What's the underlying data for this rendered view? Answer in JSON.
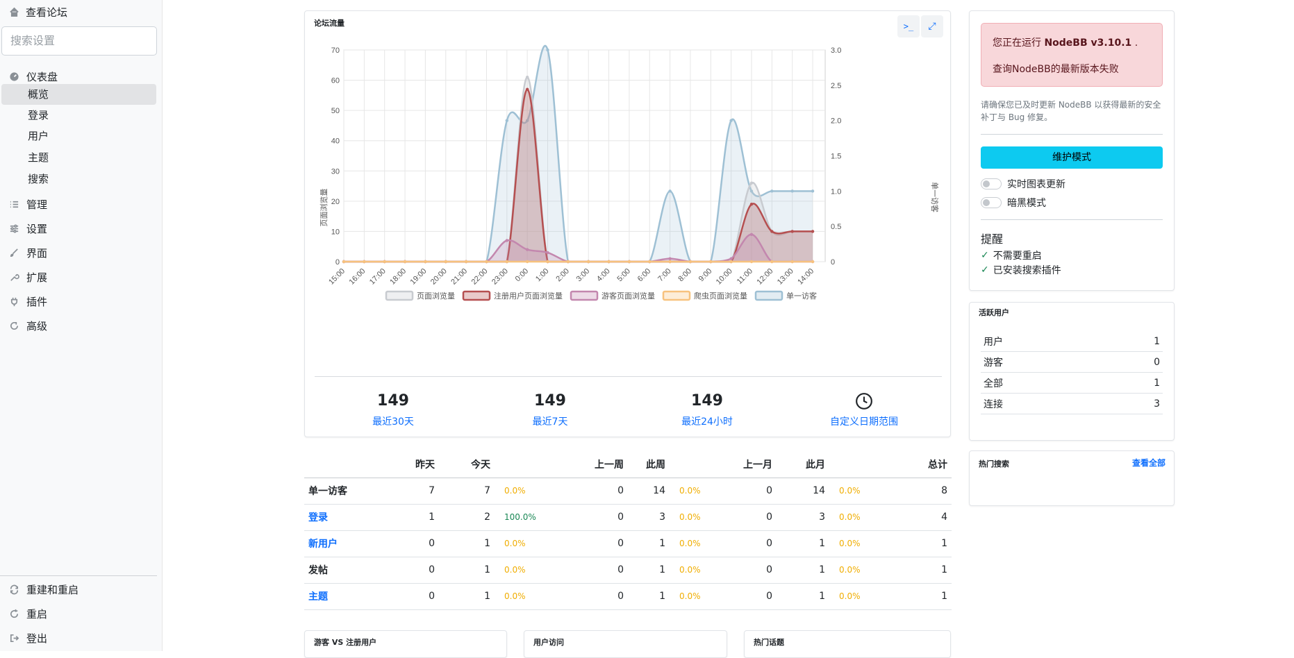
{
  "sidebar": {
    "view_forum": "查看论坛",
    "search_placeholder": "搜索设置",
    "dashboard": "仪表盘",
    "dashboard_items": [
      "概览",
      "登录",
      "用户",
      "主题",
      "搜索"
    ],
    "manage": "管理",
    "settings": "设置",
    "appearance": "界面",
    "extend": "扩展",
    "plugins": "插件",
    "advanced": "高级",
    "rebuild_restart": "重建和重启",
    "restart": "重启",
    "logout": "登出"
  },
  "traffic": {
    "title": "论坛流量",
    "stats": [
      {
        "value": "149",
        "label": "最近30天"
      },
      {
        "value": "149",
        "label": "最近7天"
      },
      {
        "value": "149",
        "label": "最近24小时"
      },
      {
        "value": "",
        "label": "自定义日期范围"
      }
    ]
  },
  "chart_data": {
    "type": "area",
    "title": "",
    "ylabel": "页面浏览量",
    "y2label": "单一访客",
    "ylim": [
      0,
      70
    ],
    "y2lim": [
      0,
      3.0
    ],
    "yticks": [
      "0",
      "10",
      "20",
      "30",
      "40",
      "50",
      "60",
      "70"
    ],
    "y2ticks": [
      "0",
      "0.5",
      "1.0",
      "1.5",
      "2.0",
      "2.5",
      "3.0"
    ],
    "x": [
      "15:00",
      "16:00",
      "17:00",
      "18:00",
      "19:00",
      "20:00",
      "21:00",
      "22:00",
      "23:00",
      "0:00",
      "1:00",
      "2:00",
      "3:00",
      "4:00",
      "5:00",
      "6:00",
      "7:00",
      "8:00",
      "9:00",
      "10:00",
      "11:00",
      "12:00",
      "13:00",
      "14:00"
    ],
    "legend_position": "bottom",
    "grid": true,
    "series": [
      {
        "name": "页面浏览量",
        "axis": "left",
        "color": "#c8cbd0",
        "values": [
          0,
          0,
          0,
          0,
          0,
          0,
          0,
          0,
          0,
          61,
          0,
          0,
          0,
          0,
          0,
          0,
          0,
          0,
          0,
          0,
          26,
          10,
          10,
          10
        ]
      },
      {
        "name": "注册用户页面浏览量",
        "axis": "left",
        "color": "#b54f50",
        "values": [
          0,
          0,
          0,
          0,
          0,
          0,
          0,
          0,
          0,
          57,
          0,
          0,
          0,
          0,
          0,
          0,
          0,
          0,
          0,
          0,
          19,
          10,
          10,
          10
        ]
      },
      {
        "name": "游客页面浏览量",
        "axis": "left",
        "color": "#c387ae",
        "values": [
          0,
          0,
          0,
          0,
          0,
          0,
          0,
          0,
          7,
          4,
          3,
          0,
          0,
          0,
          0,
          0,
          1,
          0,
          0,
          1,
          9,
          0,
          0,
          0
        ]
      },
      {
        "name": "爬虫页面浏览量",
        "axis": "left",
        "color": "#f7c27e",
        "values": [
          0,
          0,
          0,
          0,
          0,
          0,
          0,
          0,
          0,
          0,
          0,
          0,
          0,
          0,
          0,
          0,
          0,
          0,
          0,
          0,
          0,
          0,
          0,
          0
        ]
      },
      {
        "name": "单一访客",
        "axis": "right",
        "color": "#9ec0d4",
        "values": [
          0,
          0,
          0,
          0,
          0,
          0,
          0,
          0,
          2,
          2,
          3,
          0,
          0,
          0,
          0,
          0,
          1,
          0,
          0,
          2,
          1,
          1,
          1,
          1
        ]
      }
    ]
  },
  "stats_table": {
    "headers": [
      "",
      "昨天",
      "今天",
      "",
      "上一周",
      "此周",
      "",
      "上一月",
      "此月",
      "",
      "总计"
    ],
    "rows": [
      {
        "name": "单一访客",
        "link": false,
        "cells": [
          "7",
          "7",
          "0.0%",
          "0",
          "14",
          "0.0%",
          "0",
          "14",
          "0.0%",
          "8"
        ],
        "pct_colors": [
          "#f0ad00",
          "#f0ad00",
          "#f0ad00"
        ]
      },
      {
        "name": "登录",
        "link": true,
        "cells": [
          "1",
          "2",
          "100.0%",
          "0",
          "3",
          "0.0%",
          "0",
          "3",
          "0.0%",
          "4"
        ],
        "pct_colors": [
          "#198754",
          "#f0ad00",
          "#f0ad00"
        ]
      },
      {
        "name": "新用户",
        "link": true,
        "cells": [
          "0",
          "1",
          "0.0%",
          "0",
          "1",
          "0.0%",
          "0",
          "1",
          "0.0%",
          "1"
        ],
        "pct_colors": [
          "#f0ad00",
          "#f0ad00",
          "#f0ad00"
        ]
      },
      {
        "name": "发帖",
        "link": false,
        "cells": [
          "0",
          "1",
          "0.0%",
          "0",
          "1",
          "0.0%",
          "0",
          "1",
          "0.0%",
          "1"
        ],
        "pct_colors": [
          "#f0ad00",
          "#f0ad00",
          "#f0ad00"
        ]
      },
      {
        "name": "主题",
        "link": true,
        "cells": [
          "0",
          "1",
          "0.0%",
          "0",
          "1",
          "0.0%",
          "0",
          "1",
          "0.0%",
          "1"
        ],
        "pct_colors": [
          "#f0ad00",
          "#f0ad00",
          "#f0ad00"
        ]
      }
    ]
  },
  "status": {
    "running_prefix": "您正在运行 ",
    "version": "NodeBB v3.10.1",
    "running_suffix": " .",
    "check_failed": "查询NodeBB的最新版本失败",
    "security_note": "请确保您已及时更新 NodeBB 以获得最新的安全补丁与 Bug 修复。",
    "maintenance_btn": "维护模式",
    "realtime_toggle": "实时图表更新",
    "dark_toggle": "暗黑模式",
    "reminders_title": "提醒",
    "reminders": [
      "不需要重启",
      "已安装搜索插件"
    ]
  },
  "active_users": {
    "title": "活跃用户",
    "rows": [
      {
        "label": "用户",
        "value": "1"
      },
      {
        "label": "游客",
        "value": "0"
      },
      {
        "label": "全部",
        "value": "1"
      },
      {
        "label": "连接",
        "value": "3"
      }
    ]
  },
  "popular_searches": {
    "title": "热门搜索",
    "view_all": "查看全部"
  },
  "bottom_cards": [
    "游客 VS 注册用户",
    "用户访问",
    "热门话题"
  ],
  "colors": {
    "accent": "#0d6efd",
    "alert_bg": "#f8d7da",
    "maintenance": "#0dcaf0",
    "positive": "#198754",
    "neutral_pct": "#f0ad00"
  }
}
